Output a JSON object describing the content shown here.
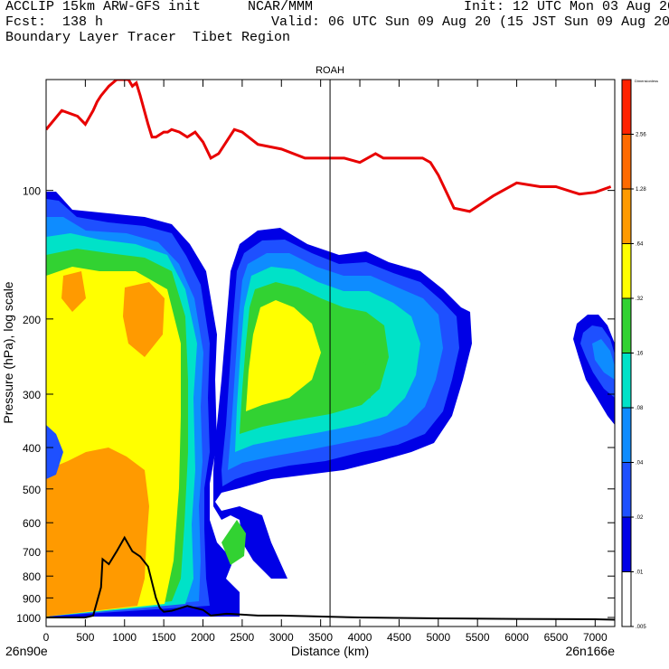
{
  "header": {
    "model": "ACCLIP 15km ARW-GFS init",
    "org": "NCAR/MMM",
    "init": "Init: 12 UTC Mon 03 Aug 20",
    "fcst": "Fcst:  138 h",
    "valid": "Valid: 06 UTC Sun 09 Aug 20 (15 JST Sun 09 Aug 20)",
    "product": "Boundary Layer Tracer  Tibet Region"
  },
  "chart_data": {
    "type": "contour",
    "title": "ROAH",
    "xlabel": "Distance (km)",
    "ylabel": "Pressure (hPa), log scale",
    "xlim": [
      0,
      7250
    ],
    "ylim": [
      1050,
      55
    ],
    "y_scale": "log",
    "x_ticks": [
      0,
      500,
      1000,
      1500,
      2000,
      2500,
      3000,
      3500,
      4000,
      4500,
      5000,
      5500,
      6000,
      6500,
      7000
    ],
    "y_ticks": [
      100,
      200,
      300,
      400,
      500,
      600,
      700,
      800,
      900,
      1000
    ],
    "x_endpoint_labels": {
      "left": "26n90e",
      "right": "26n166e"
    },
    "marker_line_x": 3620,
    "colorbar": {
      "title": "Dimensionless",
      "levels": [
        "2.56",
        "1.28",
        ".64",
        ".32",
        ".16",
        ".08",
        ".04",
        ".02",
        ".01",
        ".005"
      ],
      "colors": [
        "#ff2200",
        "#ff6a00",
        "#ff9a00",
        "#ffff00",
        "#32d232",
        "#00e2c8",
        "#0e8cff",
        "#1e50ff",
        "#0000e6",
        "#ffffff"
      ]
    },
    "tropopause_line": {
      "color": "#e80000",
      "x": [
        0,
        200,
        400,
        500,
        600,
        650,
        700,
        800,
        900,
        1000,
        1050,
        1100,
        1150,
        1200,
        1300,
        1350,
        1400,
        1500,
        1550,
        1600,
        1700,
        1800,
        1900,
        2000,
        2100,
        2200,
        2400,
        2500,
        2700,
        3000,
        3300,
        3600,
        3800,
        4000,
        4200,
        4300,
        4500,
        4800,
        4900,
        5000,
        5200,
        5400,
        5700,
        6000,
        6300,
        6500,
        6800,
        7000,
        7200
      ],
      "y": [
        72,
        65,
        67,
        70,
        65,
        62,
        60,
        57,
        55,
        55,
        55,
        57,
        56,
        60,
        70,
        75,
        75,
        73,
        73,
        72,
        73,
        75,
        73,
        77,
        84,
        82,
        72,
        73,
        78,
        80,
        84,
        84,
        84,
        86,
        82,
        84,
        84,
        84,
        86,
        92,
        110,
        112,
        103,
        96,
        98,
        98,
        102,
        101,
        98
      ]
    },
    "terrain_line": {
      "color": "#000000",
      "x": [
        0,
        500,
        600,
        700,
        720,
        800,
        900,
        1000,
        1100,
        1200,
        1300,
        1400,
        1450,
        1500,
        1600,
        1800,
        2000,
        2100,
        2300,
        2700,
        3000,
        4000,
        5000,
        6000,
        7000,
        7250
      ],
      "y": [
        1000,
        1000,
        990,
        850,
        730,
        750,
        700,
        650,
        700,
        720,
        760,
        900,
        950,
        970,
        965,
        940,
        960,
        990,
        980,
        990,
        990,
        1000,
        1005,
        1008,
        1010,
        1012
      ]
    },
    "shading_note": "Filled contours of tracer mixing ratio, shaded by colorbar levels"
  }
}
